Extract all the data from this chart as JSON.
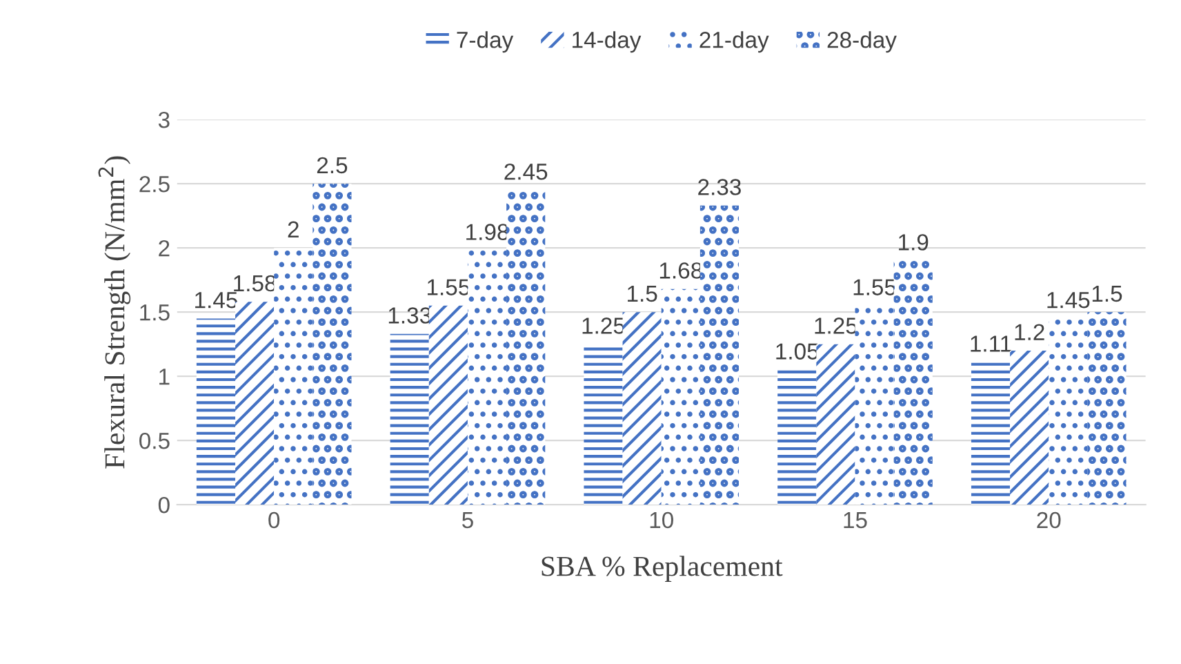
{
  "chart_data": {
    "type": "bar",
    "xlabel": "SBA % Replacement",
    "ylabel": "Flexural Strength (N/mm$^{2}$)",
    "categories": [
      "0",
      "5",
      "10",
      "15",
      "20"
    ],
    "series": [
      {
        "name": "7-day",
        "color": "#4472c4",
        "values": [
          1.45,
          1.33,
          1.25,
          1.05,
          1.11
        ]
      },
      {
        "name": "14-day",
        "color": "#4472c4",
        "values": [
          1.58,
          1.55,
          1.5,
          1.25,
          1.2
        ]
      },
      {
        "name": "21-day",
        "color": "#4472c4",
        "values": [
          2,
          1.98,
          1.68,
          1.55,
          1.45
        ]
      },
      {
        "name": "28-day",
        "color": "#4472c4",
        "values": [
          2.5,
          2.45,
          2.33,
          1.9,
          1.5
        ]
      }
    ],
    "ylim": [
      0,
      3
    ],
    "yticks": [
      0,
      0.5,
      1,
      1.5,
      2,
      2.5,
      3
    ],
    "grid": "y",
    "legend": "top",
    "data_labels": true
  }
}
